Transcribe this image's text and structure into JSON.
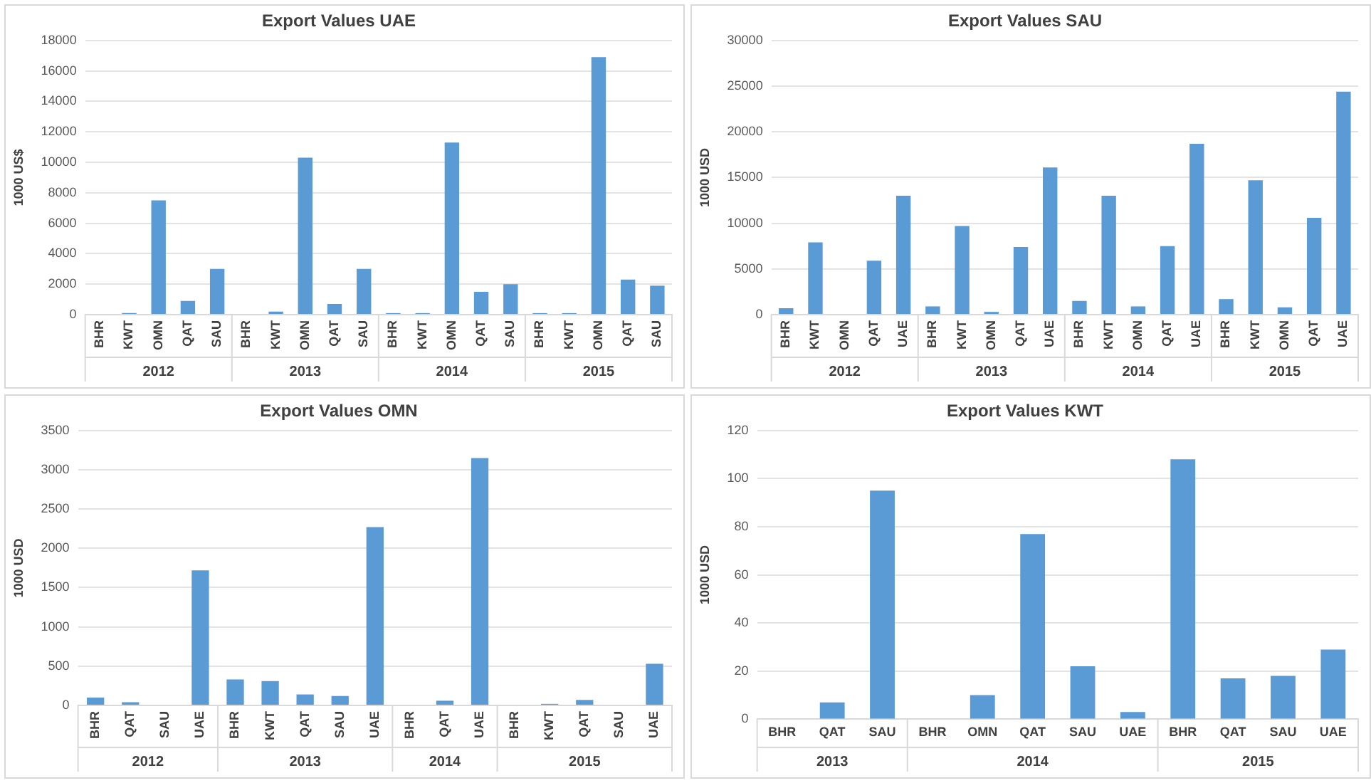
{
  "chart_data": [
    {
      "type": "bar",
      "title": "Export Values UAE",
      "ylabel": "1000 US$",
      "categories": [
        "BHR",
        "KWT",
        "OMN",
        "QAT",
        "SAU",
        "BHR",
        "KWT",
        "OMN",
        "QAT",
        "SAU",
        "BHR",
        "KWT",
        "OMN",
        "QAT",
        "SAU",
        "BHR",
        "KWT",
        "OMN",
        "QAT",
        "SAU"
      ],
      "values": [
        0,
        100,
        7500,
        900,
        3000,
        0,
        200,
        10300,
        700,
        3000,
        100,
        100,
        11300,
        1500,
        2000,
        100,
        100,
        16900,
        2300,
        1900
      ],
      "color": "#5b9bd5",
      "ylim": [
        0,
        18000
      ],
      "yticks": [
        0,
        2000,
        4000,
        6000,
        8000,
        10000,
        12000,
        14000,
        16000,
        18000
      ],
      "grid": "y",
      "annotations": [
        "2012",
        "2013",
        "2014",
        "2015"
      ]
    },
    {
      "type": "bar",
      "title": "Export Values SAU",
      "ylabel": "1000 USD",
      "categories": [
        "BHR",
        "KWT",
        "OMN",
        "QAT",
        "UAE",
        "BHR",
        "KWT",
        "OMN",
        "QAT",
        "UAE",
        "BHR",
        "KWT",
        "OMN",
        "QAT",
        "UAE",
        "BHR",
        "KWT",
        "OMN",
        "QAT",
        "UAE"
      ],
      "values": [
        700,
        7900,
        0,
        5900,
        13000,
        900,
        9700,
        300,
        7400,
        16100,
        1500,
        13000,
        900,
        7500,
        18700,
        1700,
        14700,
        800,
        10600,
        24400
      ],
      "color": "#5b9bd5",
      "ylim": [
        0,
        30000
      ],
      "yticks": [
        0,
        5000,
        10000,
        15000,
        20000,
        25000,
        30000
      ],
      "grid": "y",
      "annotations": [
        "2012",
        "2013",
        "2014",
        "2015"
      ]
    },
    {
      "type": "bar",
      "title": "Export Values OMN",
      "ylabel": "1000 USD",
      "categories": [
        "BHR",
        "QAT",
        "SAU",
        "UAE",
        "BHR",
        "KWT",
        "QAT",
        "SAU",
        "UAE",
        "BHR",
        "QAT",
        "UAE",
        "BHR",
        "KWT",
        "QAT",
        "SAU",
        "UAE"
      ],
      "values": [
        100,
        40,
        0,
        1720,
        330,
        310,
        140,
        120,
        2270,
        0,
        60,
        3150,
        0,
        20,
        70,
        0,
        530
      ],
      "color": "#5b9bd5",
      "ylim": [
        0,
        3500
      ],
      "yticks": [
        0,
        500,
        1000,
        1500,
        2000,
        2500,
        3000,
        3500
      ],
      "grid": "y",
      "annotations": [
        "2012",
        "2013",
        "2014",
        "2015"
      ]
    },
    {
      "type": "bar",
      "title": "Export Values KWT",
      "ylabel": "1000 USD",
      "categories": [
        "BHR",
        "QAT",
        "SAU",
        "BHR",
        "OMN",
        "QAT",
        "SAU",
        "UAE",
        "BHR",
        "QAT",
        "SAU",
        "UAE"
      ],
      "values": [
        0,
        7,
        95,
        0,
        10,
        77,
        22,
        3,
        108,
        17,
        18,
        29
      ],
      "color": "#5b9bd5",
      "ylim": [
        0,
        120
      ],
      "yticks": [
        0,
        20,
        40,
        60,
        80,
        100,
        120
      ],
      "grid": "y",
      "annotations": [
        "2013",
        "2014",
        "2015"
      ]
    }
  ]
}
